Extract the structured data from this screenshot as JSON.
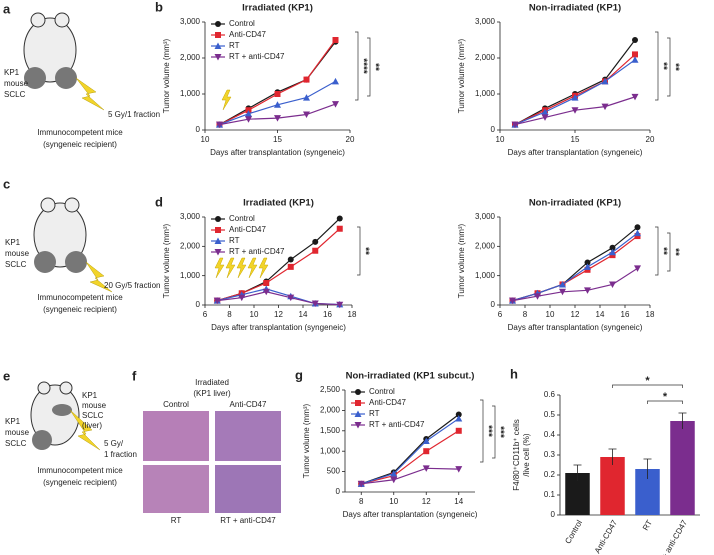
{
  "chart_data": [
    {
      "type": "line",
      "panel": "b",
      "title": "Irradiated (KP1)",
      "xlabel": "Days after transplantation (syngeneic)",
      "ylabel": [
        "Tumor volume (mm³)"
      ],
      "x": [
        11,
        13,
        15,
        17,
        19
      ],
      "xlim": [
        10,
        20
      ],
      "xticks": [
        10,
        15,
        20
      ],
      "ylim": [
        0,
        3000
      ],
      "yticks": [
        0,
        {
          "value": 1000,
          "label": "1,000"
        },
        {
          "value": 2000,
          "label": "2,000"
        },
        {
          "value": 3000,
          "label": "3,000"
        }
      ],
      "legend": "upper left",
      "series": [
        {
          "name": "Control",
          "color": "#1a1a1a",
          "marker": "circle",
          "values": [
            150,
            600,
            1050,
            1400,
            2450
          ]
        },
        {
          "name": "Anti-CD47",
          "color": "#e0262f",
          "marker": "square",
          "values": [
            150,
            550,
            1000,
            1400,
            2500
          ]
        },
        {
          "name": "RT",
          "color": "#3a5fcd",
          "marker": "triangle",
          "values": [
            150,
            450,
            700,
            900,
            1350
          ]
        },
        {
          "name": "RT + anti-CD47",
          "color": "#7b2d8e",
          "marker": "triangle-down",
          "values": [
            150,
            300,
            330,
            430,
            720
          ]
        }
      ],
      "annotations": [
        {
          "text": "****",
          "color": "#e0262f"
        },
        {
          "text": "**",
          "color": "#3a5fcd"
        }
      ]
    },
    {
      "type": "line",
      "title": "Non-irradiated (KP1)",
      "xlabel": "Days after transplantation (syngeneic)",
      "ylabel": [
        "Tumor volume (mm³)"
      ],
      "x": [
        11,
        13,
        15,
        17,
        19
      ],
      "xlim": [
        10,
        20
      ],
      "xticks": [
        10,
        15,
        20
      ],
      "ylim": [
        0,
        3000
      ],
      "yticks": [
        0,
        {
          "value": 1000,
          "label": "1,000"
        },
        {
          "value": 2000,
          "label": "2,000"
        },
        {
          "value": 3000,
          "label": "3,000"
        }
      ],
      "series": [
        {
          "name": "Control",
          "color": "#1a1a1a",
          "marker": "circle",
          "values": [
            150,
            600,
            1000,
            1400,
            2500
          ]
        },
        {
          "name": "Anti-CD47",
          "color": "#e0262f",
          "marker": "square",
          "values": [
            150,
            550,
            950,
            1350,
            2100
          ]
        },
        {
          "name": "RT",
          "color": "#3a5fcd",
          "marker": "triangle",
          "values": [
            150,
            500,
            900,
            1350,
            1950
          ]
        },
        {
          "name": "RT + anti-CD47",
          "color": "#7b2d8e",
          "marker": "triangle-down",
          "values": [
            150,
            350,
            550,
            650,
            920
          ]
        }
      ],
      "annotations": [
        {
          "text": "**",
          "color": "#3a5fcd"
        },
        {
          "text": "**",
          "color": "#e0262f"
        }
      ]
    },
    {
      "type": "line",
      "panel": "d",
      "title": "Irradiated (KP1)",
      "xlabel": "Days after transplantation (syngeneic)",
      "ylabel": [
        "Tumor volume (mm³)"
      ],
      "x": [
        7,
        9,
        11,
        13,
        15,
        17
      ],
      "xlim": [
        6,
        18
      ],
      "xticks": [
        6,
        8,
        10,
        12,
        14,
        16,
        18
      ],
      "ylim": [
        0,
        3000
      ],
      "yticks": [
        0,
        {
          "value": 1000,
          "label": "1,000"
        },
        {
          "value": 2000,
          "label": "2,000"
        },
        {
          "value": 3000,
          "label": "3,000"
        }
      ],
      "legend": "upper left",
      "series": [
        {
          "name": "Control",
          "color": "#1a1a1a",
          "marker": "circle",
          "values": [
            150,
            400,
            800,
            1550,
            2150,
            2950
          ]
        },
        {
          "name": "Anti-CD47",
          "color": "#e0262f",
          "marker": "square",
          "values": [
            150,
            400,
            750,
            1300,
            1850,
            2600
          ]
        },
        {
          "name": "RT",
          "color": "#3a5fcd",
          "marker": "triangle",
          "values": [
            150,
            350,
            550,
            300,
            50,
            20
          ]
        },
        {
          "name": "RT + anti-CD47",
          "color": "#7b2d8e",
          "marker": "triangle-down",
          "values": [
            150,
            250,
            450,
            250,
            50,
            10
          ]
        }
      ],
      "annotations": [
        {
          "text": "**",
          "color": "#e0262f"
        }
      ]
    },
    {
      "type": "line",
      "title": "Non-irradiated (KP1)",
      "xlabel": "Days after transplantation (syngeneic)",
      "ylabel": [
        "Tumor volume (mm³)"
      ],
      "x": [
        7,
        9,
        11,
        13,
        15,
        17
      ],
      "xlim": [
        6,
        18
      ],
      "xticks": [
        6,
        8,
        10,
        12,
        14,
        16,
        18
      ],
      "ylim": [
        0,
        3000
      ],
      "yticks": [
        0,
        {
          "value": 1000,
          "label": "1,000"
        },
        {
          "value": 2000,
          "label": "2,000"
        },
        {
          "value": 3000,
          "label": "3,000"
        }
      ],
      "series": [
        {
          "name": "Control",
          "color": "#1a1a1a",
          "marker": "circle",
          "values": [
            150,
            400,
            700,
            1450,
            1950,
            2650
          ]
        },
        {
          "name": "Anti-CD47",
          "color": "#e0262f",
          "marker": "square",
          "values": [
            150,
            400,
            700,
            1200,
            1700,
            2350
          ]
        },
        {
          "name": "RT",
          "color": "#3a5fcd",
          "marker": "triangle",
          "values": [
            150,
            400,
            700,
            1300,
            1800,
            2450
          ]
        },
        {
          "name": "RT + anti-CD47",
          "color": "#7b2d8e",
          "marker": "triangle-down",
          "values": [
            150,
            300,
            450,
            500,
            700,
            1250
          ]
        }
      ],
      "annotations": [
        {
          "text": "**",
          "color": "#3a5fcd"
        },
        {
          "text": "**",
          "color": "#e0262f"
        }
      ]
    },
    {
      "type": "line",
      "panel": "g",
      "title": "Non-irradiated (KP1 subcut.)",
      "xlabel": "Days after transplantation (syngeneic)",
      "ylabel": [
        "Tumor volume (mm³)"
      ],
      "x": [
        8,
        10,
        12,
        14
      ],
      "xlim": [
        7,
        15
      ],
      "xticks": [
        8,
        10,
        12,
        14
      ],
      "ylim": [
        0,
        2500
      ],
      "yticks": [
        0,
        500,
        {
          "value": 1000,
          "label": "1,000"
        },
        {
          "value": 1500,
          "label": "1,500"
        },
        {
          "value": 2000,
          "label": "2,000"
        },
        {
          "value": 2500,
          "label": "2,500"
        }
      ],
      "legend": "upper left",
      "series": [
        {
          "name": "Control",
          "color": "#1a1a1a",
          "marker": "circle",
          "values": [
            200,
            480,
            1300,
            1900
          ]
        },
        {
          "name": "Anti-CD47",
          "color": "#e0262f",
          "marker": "square",
          "values": [
            200,
            400,
            1000,
            1500
          ]
        },
        {
          "name": "RT",
          "color": "#3a5fcd",
          "marker": "triangle",
          "values": [
            200,
            450,
            1250,
            1800
          ]
        },
        {
          "name": "RT + anti-CD47",
          "color": "#7b2d8e",
          "marker": "triangle-down",
          "values": [
            200,
            300,
            580,
            560
          ]
        }
      ],
      "annotations": [
        {
          "text": "***",
          "color": "#e0262f"
        },
        {
          "text": "***",
          "color": "#3a5fcd"
        }
      ]
    },
    {
      "type": "bar",
      "panel": "h",
      "ylabel": [
        "F4/80⁺CD11b⁺ cells",
        "/live cell (%)"
      ],
      "categories": [
        "Control",
        "Anti-CD47",
        "RT",
        "RT + anti-CD47"
      ],
      "values": [
        0.21,
        0.29,
        0.23,
        0.47
      ],
      "errors": [
        0.04,
        0.04,
        0.05,
        0.04
      ],
      "colors": [
        "#1a1a1a",
        "#e0262f",
        "#3a5fcd",
        "#7b2d8e"
      ],
      "ylim": [
        0,
        0.6
      ],
      "yticks": [
        0,
        0.1,
        0.2,
        0.3,
        0.4,
        0.5,
        0.6
      ],
      "annotations": [
        {
          "text": "*",
          "color": "#e0262f"
        },
        {
          "text": "*",
          "color": "#3a5fcd"
        }
      ]
    }
  ],
  "diagrams": {
    "a": {
      "letter": "a",
      "tumor": [
        "KP1",
        "mouse",
        "SCLC"
      ],
      "dose": "5 Gy/1 fraction",
      "host": [
        "Immunocompetent mice",
        "(syngeneic recipient)"
      ]
    },
    "c": {
      "letter": "c",
      "tumor": [
        "KP1",
        "mouse",
        "SCLC"
      ],
      "dose": "20 Gy/5 fraction",
      "host": [
        "Immunocompetent mice",
        "(syngeneic recipient)"
      ]
    },
    "e": {
      "letter": "e",
      "tumor": [
        "KP1",
        "mouse",
        "SCLC"
      ],
      "liver": [
        "KP1",
        "mouse",
        "SCLC",
        "(liver)"
      ],
      "dose": [
        "5 Gy/",
        "1 fraction"
      ],
      "host": [
        "Immunocompetent mice",
        "(syngeneic recipient)"
      ]
    },
    "f": {
      "letter": "f",
      "title": [
        "Irradiated",
        "(KP1 liver)"
      ],
      "labels": [
        "Control",
        "Anti-CD47",
        "RT",
        "RT + anti-CD47"
      ]
    }
  }
}
